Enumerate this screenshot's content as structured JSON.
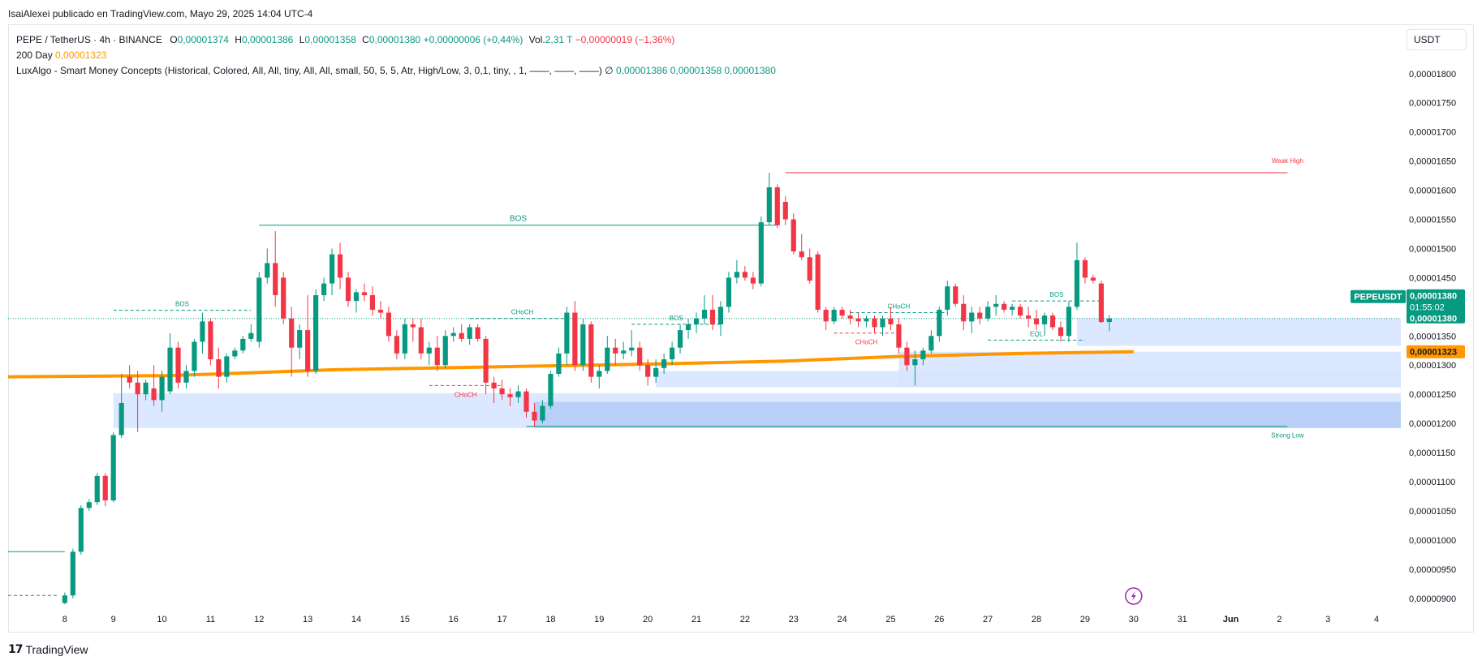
{
  "header": {
    "publish_line": "IsaiAlexei publicado en TradingView.com, Mayo 29, 2025 14:04 UTC-4"
  },
  "legend": {
    "symbol": "PEPE / TetherUS · 4h · BINANCE",
    "o_label": "O",
    "o_value": "0,00001374",
    "h_label": "H",
    "h_value": "0,00001386",
    "l_label": "L",
    "l_value": "0,00001358",
    "c_label": "C",
    "c_value": "0,00001380",
    "change": "+0,00000006 (+0,44%)",
    "vol_label": "Vol.",
    "vol_value": "2,31 T",
    "vol_change": "−0,00000019 (−1,36%)",
    "ma_title": "200 Day",
    "ma_value": "0,00001323",
    "indicator_title": "LuxAlgo - Smart Money Concepts (Historical, Colored, All, All, tiny, All, All, small, 50, 5, 5, Atr, High/Low, 3, 0,1, tiny, , 1, ——, ——, ——)",
    "indicator_symbol": "∅",
    "ind_v1": "0,00001386",
    "ind_v2": "0,00001358",
    "ind_v3": "0,00001380"
  },
  "currency": "USDT",
  "footer": {
    "brand": "TradingView",
    "mark": "17"
  },
  "colors": {
    "up": "#089981",
    "down": "#f23645",
    "ma": "#ff9800",
    "zone_light": "#d6e4ff",
    "zone_dark": "#b5cbf7",
    "axis_text": "#131722",
    "grid_border": "#e0e3eb",
    "badge_bg": "#089981"
  },
  "chart_data": {
    "type": "candlestick",
    "symbol": "PEPEUSDT",
    "timeframe": "4h",
    "y_axis": {
      "min": 8.9e-06,
      "max": 1.84e-05,
      "ticks": [
        "0,00000900",
        "0,00000950",
        "0,00001000",
        "0,00001050",
        "0,00001100",
        "0,00001150",
        "0,00001200",
        "0,00001250",
        "0,00001300",
        "0,00001350",
        "0,00001400",
        "0,00001450",
        "0,00001500",
        "0,00001550",
        "0,00001600",
        "0,00001650",
        "0,00001700",
        "0,00001750",
        "0,00001800"
      ],
      "tick_values": [
        9e-06,
        9.5e-06,
        1e-05,
        1.05e-05,
        1.1e-05,
        1.15e-05,
        1.2e-05,
        1.25e-05,
        1.3e-05,
        1.35e-05,
        1.4e-05,
        1.45e-05,
        1.5e-05,
        1.55e-05,
        1.6e-05,
        1.65e-05,
        1.7e-05,
        1.75e-05,
        1.8e-05
      ]
    },
    "x_axis": {
      "labels": [
        "8",
        "9",
        "10",
        "11",
        "12",
        "13",
        "14",
        "15",
        "16",
        "17",
        "18",
        "19",
        "20",
        "21",
        "22",
        "23",
        "24",
        "25",
        "26",
        "27",
        "28",
        "29",
        "30",
        "31",
        "Jun",
        "2",
        "3",
        "4"
      ],
      "label_index": [
        7,
        13,
        19,
        25,
        31,
        37,
        43,
        49,
        55,
        61,
        67,
        73,
        79,
        85,
        91,
        97,
        103,
        109,
        115,
        121,
        127,
        133,
        139,
        145,
        151,
        157,
        163,
        169
      ],
      "index_range": [
        0,
        172
      ]
    },
    "candles": [
      [
        8.92e-06,
        9.1e-06,
        8.9e-06,
        9.05e-06
      ],
      [
        9.05e-06,
        9.85e-06,
        9e-06,
        9.8e-06
      ],
      [
        9.8e-06,
        1.06e-05,
        9.75e-06,
        1.055e-05
      ],
      [
        1.055e-05,
        1.07e-05,
        1.05e-05,
        1.065e-05
      ],
      [
        1.065e-05,
        1.115e-05,
        1.06e-05,
        1.11e-05
      ],
      [
        1.11e-05,
        1.115e-05,
        1.058e-05,
        1.068e-05
      ],
      [
        1.068e-05,
        1.185e-05,
        1.065e-05,
        1.18e-05
      ],
      [
        1.18e-05,
        1.285e-05,
        1.175e-05,
        1.235e-05
      ],
      [
        1.28e-05,
        1.3e-05,
        1.26e-05,
        1.27e-05
      ],
      [
        1.27e-05,
        1.29e-05,
        1.185e-05,
        1.25e-05
      ],
      [
        1.25e-05,
        1.275e-05,
        1.24e-05,
        1.27e-05
      ],
      [
        1.26e-05,
        1.3e-05,
        1.23e-05,
        1.24e-05
      ],
      [
        1.24e-05,
        1.29e-05,
        1.22e-05,
        1.28e-05
      ],
      [
        1.255e-05,
        1.355e-05,
        1.25e-05,
        1.33e-05
      ],
      [
        1.33e-05,
        1.34e-05,
        1.26e-05,
        1.27e-05
      ],
      [
        1.27e-05,
        1.3e-05,
        1.26e-05,
        1.29e-05
      ],
      [
        1.29e-05,
        1.345e-05,
        1.28e-05,
        1.34e-05
      ],
      [
        1.34e-05,
        1.39e-05,
        1.32e-05,
        1.375e-05
      ],
      [
        1.375e-05,
        1.38e-05,
        1.3e-05,
        1.31e-05
      ],
      [
        1.31e-05,
        1.33e-05,
        1.26e-05,
        1.28e-05
      ],
      [
        1.28e-05,
        1.32e-05,
        1.27e-05,
        1.315e-05
      ],
      [
        1.315e-05,
        1.33e-05,
        1.31e-05,
        1.325e-05
      ],
      [
        1.325e-05,
        1.35e-05,
        1.32e-05,
        1.345e-05
      ],
      [
        1.345e-05,
        1.37e-05,
        1.34e-05,
        1.355e-05
      ],
      [
        1.34e-05,
        1.46e-05,
        1.33e-05,
        1.45e-05
      ],
      [
        1.45e-05,
        1.5e-05,
        1.44e-05,
        1.475e-05
      ],
      [
        1.475e-05,
        1.53e-05,
        1.4e-05,
        1.42e-05
      ],
      [
        1.45e-05,
        1.46e-05,
        1.37e-05,
        1.38e-05
      ],
      [
        1.38e-05,
        1.4e-05,
        1.28e-05,
        1.33e-05
      ],
      [
        1.33e-05,
        1.37e-05,
        1.31e-05,
        1.36e-05
      ],
      [
        1.36e-05,
        1.42e-05,
        1.28e-05,
        1.29e-05
      ],
      [
        1.29e-05,
        1.43e-05,
        1.285e-05,
        1.42e-05
      ],
      [
        1.42e-05,
        1.45e-05,
        1.41e-05,
        1.44e-05
      ],
      [
        1.44e-05,
        1.5e-05,
        1.42e-05,
        1.49e-05
      ],
      [
        1.49e-05,
        1.51e-05,
        1.43e-05,
        1.45e-05
      ],
      [
        1.45e-05,
        1.46e-05,
        1.4e-05,
        1.41e-05
      ],
      [
        1.41e-05,
        1.43e-05,
        1.39e-05,
        1.425e-05
      ],
      [
        1.425e-05,
        1.44e-05,
        1.41e-05,
        1.42e-05
      ],
      [
        1.42e-05,
        1.435e-05,
        1.385e-05,
        1.395e-05
      ],
      [
        1.395e-05,
        1.41e-05,
        1.38e-05,
        1.39e-05
      ],
      [
        1.39e-05,
        1.4e-05,
        1.34e-05,
        1.35e-05
      ],
      [
        1.35e-05,
        1.36e-05,
        1.31e-05,
        1.32e-05
      ],
      [
        1.32e-05,
        1.38e-05,
        1.31e-05,
        1.37e-05
      ],
      [
        1.37e-05,
        1.38e-05,
        1.34e-05,
        1.365e-05
      ],
      [
        1.365e-05,
        1.38e-05,
        1.31e-05,
        1.32e-05
      ],
      [
        1.32e-05,
        1.34e-05,
        1.3e-05,
        1.33e-05
      ],
      [
        1.33e-05,
        1.35e-05,
        1.29e-05,
        1.3e-05
      ],
      [
        1.3e-05,
        1.36e-05,
        1.295e-05,
        1.35e-05
      ],
      [
        1.35e-05,
        1.365e-05,
        1.34e-05,
        1.355e-05
      ],
      [
        1.355e-05,
        1.37e-05,
        1.34e-05,
        1.345e-05
      ],
      [
        1.345e-05,
        1.37e-05,
        1.335e-05,
        1.365e-05
      ],
      [
        1.365e-05,
        1.37e-05,
        1.34e-05,
        1.345e-05
      ],
      [
        1.345e-05,
        1.35e-05,
        1.25e-05,
        1.27e-05
      ],
      [
        1.27e-05,
        1.28e-05,
        1.235e-05,
        1.26e-05
      ],
      [
        1.26e-05,
        1.275e-05,
        1.24e-05,
        1.25e-05
      ],
      [
        1.25e-05,
        1.26e-05,
        1.23e-05,
        1.245e-05
      ],
      [
        1.245e-05,
        1.265e-05,
        1.235e-05,
        1.255e-05
      ],
      [
        1.255e-05,
        1.26e-05,
        1.21e-05,
        1.22e-05
      ],
      [
        1.22e-05,
        1.235e-05,
        1.195e-05,
        1.205e-05
      ],
      [
        1.205e-05,
        1.24e-05,
        1.2e-05,
        1.23e-05
      ],
      [
        1.23e-05,
        1.29e-05,
        1.225e-05,
        1.285e-05
      ],
      [
        1.285e-05,
        1.33e-05,
        1.28e-05,
        1.32e-05
      ],
      [
        1.32e-05,
        1.4e-05,
        1.3e-05,
        1.39e-05
      ],
      [
        1.39e-05,
        1.41e-05,
        1.29e-05,
        1.3e-05
      ],
      [
        1.3e-05,
        1.38e-05,
        1.29e-05,
        1.37e-05
      ],
      [
        1.37e-05,
        1.375e-05,
        1.27e-05,
        1.28e-05
      ],
      [
        1.28e-05,
        1.3e-05,
        1.26e-05,
        1.29e-05
      ],
      [
        1.29e-05,
        1.35e-05,
        1.285e-05,
        1.33e-05
      ],
      [
        1.33e-05,
        1.345e-05,
        1.3e-05,
        1.32e-05
      ],
      [
        1.32e-05,
        1.34e-05,
        1.31e-05,
        1.325e-05
      ],
      [
        1.325e-05,
        1.36e-05,
        1.315e-05,
        1.33e-05
      ],
      [
        1.33e-05,
        1.34e-05,
        1.29e-05,
        1.3e-05
      ],
      [
        1.3e-05,
        1.31e-05,
        1.265e-05,
        1.28e-05
      ],
      [
        1.28e-05,
        1.31e-05,
        1.27e-05,
        1.295e-05
      ],
      [
        1.295e-05,
        1.32e-05,
        1.285e-05,
        1.31e-05
      ],
      [
        1.31e-05,
        1.34e-05,
        1.3e-05,
        1.33e-05
      ],
      [
        1.33e-05,
        1.37e-05,
        1.32e-05,
        1.36e-05
      ],
      [
        1.36e-05,
        1.38e-05,
        1.345e-05,
        1.37e-05
      ],
      [
        1.37e-05,
        1.39e-05,
        1.355e-05,
        1.38e-05
      ],
      [
        1.38e-05,
        1.42e-05,
        1.37e-05,
        1.395e-05
      ],
      [
        1.395e-05,
        1.42e-05,
        1.36e-05,
        1.37e-05
      ],
      [
        1.37e-05,
        1.41e-05,
        1.35e-05,
        1.4e-05
      ],
      [
        1.4e-05,
        1.46e-05,
        1.39e-05,
        1.45e-05
      ],
      [
        1.45e-05,
        1.48e-05,
        1.44e-05,
        1.46e-05
      ],
      [
        1.46e-05,
        1.47e-05,
        1.445e-05,
        1.45e-05
      ],
      [
        1.45e-05,
        1.46e-05,
        1.43e-05,
        1.44e-05
      ],
      [
        1.44e-05,
        1.555e-05,
        1.435e-05,
        1.545e-05
      ],
      [
        1.545e-05,
        1.63e-05,
        1.54e-05,
        1.605e-05
      ],
      [
        1.605e-05,
        1.61e-05,
        1.535e-05,
        1.54e-05
      ],
      [
        1.58e-05,
        1.59e-05,
        1.54e-05,
        1.55e-05
      ],
      [
        1.55e-05,
        1.56e-05,
        1.49e-05,
        1.495e-05
      ],
      [
        1.495e-05,
        1.525e-05,
        1.48e-05,
        1.485e-05
      ],
      [
        1.485e-05,
        1.5e-05,
        1.44e-05,
        1.445e-05
      ],
      [
        1.49e-05,
        1.495e-05,
        1.39e-05,
        1.395e-05
      ],
      [
        1.395e-05,
        1.4e-05,
        1.36e-05,
        1.375e-05
      ],
      [
        1.375e-05,
        1.4e-05,
        1.37e-05,
        1.395e-05
      ],
      [
        1.395e-05,
        1.4e-05,
        1.38e-05,
        1.385e-05
      ],
      [
        1.385e-05,
        1.395e-05,
        1.37e-05,
        1.38e-05
      ]
    ],
    "candle_start_index": 7,
    "candles_tail": [
      [
        1.38e-05,
        1.39e-05,
        1.365e-05,
        1.375e-05
      ],
      [
        1.375e-05,
        1.385e-05,
        1.365e-05,
        1.38e-05
      ],
      [
        1.38e-05,
        1.385e-05,
        1.355e-05,
        1.365e-05
      ],
      [
        1.365e-05,
        1.385e-05,
        1.35e-05,
        1.38e-05
      ],
      [
        1.38e-05,
        1.4e-05,
        1.36e-05,
        1.37e-05
      ],
      [
        1.37e-05,
        1.38e-05,
        1.32e-05,
        1.33e-05
      ],
      [
        1.33e-05,
        1.34e-05,
        1.29e-05,
        1.3e-05
      ],
      [
        1.3e-05,
        1.325e-05,
        1.265e-05,
        1.31e-05
      ],
      [
        1.31e-05,
        1.33e-05,
        1.3e-05,
        1.325e-05
      ],
      [
        1.325e-05,
        1.36e-05,
        1.32e-05,
        1.35e-05
      ],
      [
        1.35e-05,
        1.4e-05,
        1.34e-05,
        1.395e-05
      ],
      [
        1.395e-05,
        1.445e-05,
        1.385e-05,
        1.435e-05
      ],
      [
        1.435e-05,
        1.44e-05,
        1.4e-05,
        1.405e-05
      ],
      [
        1.405e-05,
        1.42e-05,
        1.36e-05,
        1.375e-05
      ],
      [
        1.375e-05,
        1.4e-05,
        1.355e-05,
        1.39e-05
      ],
      [
        1.39e-05,
        1.4e-05,
        1.37e-05,
        1.38e-05
      ],
      [
        1.38e-05,
        1.41e-05,
        1.375e-05,
        1.4e-05
      ],
      [
        1.4e-05,
        1.42e-05,
        1.385e-05,
        1.405e-05
      ],
      [
        1.405e-05,
        1.41e-05,
        1.39e-05,
        1.395e-05
      ],
      [
        1.395e-05,
        1.405e-05,
        1.385e-05,
        1.4e-05
      ],
      [
        1.4e-05,
        1.405e-05,
        1.38e-05,
        1.385e-05
      ],
      [
        1.385e-05,
        1.4e-05,
        1.365e-05,
        1.38e-05
      ],
      [
        1.38e-05,
        1.395e-05,
        1.36e-05,
        1.37e-05
      ],
      [
        1.37e-05,
        1.39e-05,
        1.35e-05,
        1.385e-05
      ],
      [
        1.385e-05,
        1.39e-05,
        1.36e-05,
        1.365e-05
      ],
      [
        1.365e-05,
        1.375e-05,
        1.34e-05,
        1.35e-05
      ],
      [
        1.35e-05,
        1.41e-05,
        1.34e-05,
        1.4e-05
      ],
      [
        1.4e-05,
        1.51e-05,
        1.395e-05,
        1.48e-05
      ],
      [
        1.48e-05,
        1.485e-05,
        1.44e-05,
        1.45e-05
      ],
      [
        1.45e-05,
        1.455e-05,
        1.44e-05,
        1.445e-05
      ],
      [
        1.44e-05,
        1.445e-05,
        1.372e-05,
        1.374e-05
      ],
      [
        1.374e-05,
        1.386e-05,
        1.358e-05,
        1.38e-05
      ]
    ],
    "ma200": [
      [
        0,
        1.28e-05
      ],
      [
        20,
        1.282e-05
      ],
      [
        40,
        1.292e-05
      ],
      [
        60,
        1.297e-05
      ],
      [
        80,
        1.302e-05
      ],
      [
        96,
        1.307e-05
      ],
      [
        110,
        1.315e-05
      ],
      [
        125,
        1.32e-05
      ],
      [
        139,
        1.323e-05
      ]
    ],
    "structure_lines": [
      {
        "label": "BOS",
        "from": 13,
        "to": 30,
        "y": 1.394e-05,
        "color": "#089981",
        "dashed": true,
        "label_color": "#089981"
      },
      {
        "label": "BOS",
        "from": 31,
        "to": 95,
        "y": 1.54e-05,
        "color": "#089981",
        "dashed": false,
        "label_color": "#089981"
      },
      {
        "label": "CHoCH",
        "from": 57,
        "to": 70,
        "y": 1.38e-05,
        "color": "#089981",
        "dashed": true,
        "label_color": "#089981"
      },
      {
        "label": "CHoCH",
        "from": 52,
        "to": 61,
        "y": 1.265e-05,
        "color": "#f23645",
        "dashed": true,
        "label_color": "#f23645"
      },
      {
        "label": "BOS",
        "from": 77,
        "to": 88,
        "y": 1.37e-05,
        "color": "#089981",
        "dashed": true,
        "label_color": "#089981"
      },
      {
        "label": "CHoCH",
        "from": 104,
        "to": 116,
        "y": 1.39e-05,
        "color": "#089981",
        "dashed": true,
        "label_color": "#089981"
      },
      {
        "label": "CHoCH",
        "from": 102,
        "to": 110,
        "y": 1.355e-05,
        "color": "#f23645",
        "dashed": true,
        "label_color": "#f23645"
      },
      {
        "label": "BOS",
        "from": 124,
        "to": 135,
        "y": 1.41e-05,
        "color": "#089981",
        "dashed": true,
        "label_color": "#089981"
      },
      {
        "label": "EQL",
        "from": 121,
        "to": 133,
        "y": 1.343e-05,
        "color": "#089981",
        "dashed": true,
        "label_color": "#089981"
      }
    ],
    "swing_levels": [
      {
        "label": "Weak High",
        "from": 96,
        "to": 158,
        "y": 1.63e-05,
        "color": "#f23645"
      },
      {
        "label": "Strong Low",
        "from": 64,
        "to": 158,
        "y": 1.195e-05,
        "color": "#089981"
      }
    ],
    "zones": [
      {
        "from": 13,
        "to": 172,
        "top": 1.252e-05,
        "bottom": 1.192e-05,
        "shade": "light"
      },
      {
        "from": 65,
        "to": 172,
        "top": 1.237e-05,
        "bottom": 1.192e-05,
        "shade": "dark"
      },
      {
        "from": 110,
        "to": 172,
        "top": 1.323e-05,
        "bottom": 1.262e-05,
        "shade": "light"
      },
      {
        "from": 80,
        "to": 172,
        "top": 1.29e-05,
        "bottom": 1.262e-05,
        "shade": "light"
      },
      {
        "from": 132,
        "to": 172,
        "top": 1.38e-05,
        "bottom": 1.333e-05,
        "shade": "light"
      }
    ],
    "early_levels": [
      {
        "from": 0,
        "to": 7,
        "y": 9.8e-06,
        "color": "#089981",
        "dashed": false
      },
      {
        "from": 0,
        "to": 6,
        "y": 9.05e-06,
        "color": "#089981",
        "dashed": true
      }
    ],
    "price_badges": [
      {
        "text": "PEPEUSDT",
        "kind": "symbol"
      },
      {
        "lines": [
          "0,00001380",
          "01:55:02",
          "0,00001380"
        ],
        "kind": "price",
        "y": 1.38e-05
      },
      {
        "text": "0,00001323",
        "kind": "ma",
        "y": 1.323e-05
      }
    ],
    "last_price": 1.38e-05,
    "current_bar_index": 139
  }
}
